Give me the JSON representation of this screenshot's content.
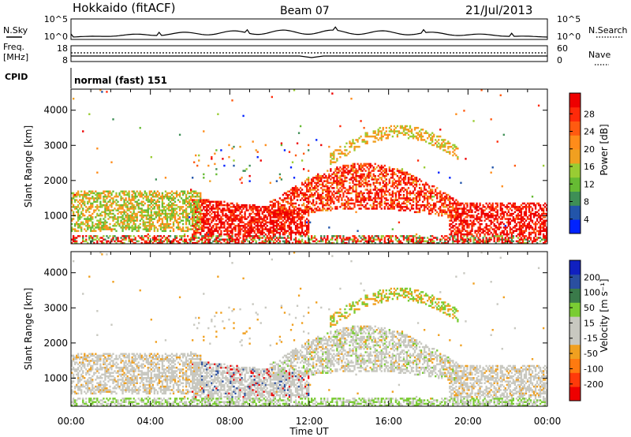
{
  "header": {
    "station": "Hokkaido (fitACF)",
    "beam": "Beam 07",
    "date": "21/Jul/2013"
  },
  "top_panels": {
    "nsky_label": "N.Sky",
    "nsearch_label": "N.Search",
    "nsky_ticks": [
      "10^5",
      "10^0"
    ],
    "freq_label": "Freq.",
    "freq_unit": "[MHz]",
    "freq_ticks": [
      "18",
      "8"
    ],
    "nave_ticks": [
      "60",
      "0"
    ],
    "nave_label": "Nave",
    "cpid_label": "CPID",
    "cpid_value": "normal (fast) 151"
  },
  "colors": {
    "power_scale": [
      "#0022ff",
      "#2255aa",
      "#3e8f56",
      "#66bb33",
      "#99cc33",
      "#f0a020",
      "#ff8c1a",
      "#ff5a10",
      "#ff2a0a",
      "#ee0000"
    ],
    "velocity_scale": [
      "#1020c0",
      "#2a4fa0",
      "#3a7a4a",
      "#7acc33",
      "#c8c8c0",
      "#c8c8c0",
      "#f0a020",
      "#ff7a10",
      "#ff3a0a",
      "#ee0000"
    ]
  },
  "chart_data": [
    {
      "type": "heatmap",
      "name": "power-panel",
      "ylabel": "Slant Range [km]",
      "xlabel": "",
      "yticks": [
        "1000",
        "2000",
        "3000",
        "4000"
      ],
      "ylim": [
        200,
        4600
      ],
      "xticks": [
        "00:00",
        "04:00",
        "08:00",
        "12:00",
        "16:00",
        "20:00",
        "00:00"
      ],
      "colorbar": {
        "label": "Power [dB]",
        "ticks": [
          "4",
          "8",
          "12",
          "16",
          "20",
          "24",
          "28"
        ]
      }
    },
    {
      "type": "heatmap",
      "name": "velocity-panel",
      "ylabel": "Slant Range [km]",
      "xlabel": "Time UT",
      "yticks": [
        "1000",
        "2000",
        "3000",
        "4000"
      ],
      "ylim": [
        200,
        4600
      ],
      "xticks": [
        "00:00",
        "04:00",
        "08:00",
        "12:00",
        "16:00",
        "20:00",
        "00:00"
      ],
      "colorbar": {
        "label": "Velocity [m s⁻¹]",
        "ticks": [
          "200",
          "100",
          "50",
          "15",
          "-15",
          "-50",
          "-100",
          "-200"
        ]
      }
    }
  ]
}
